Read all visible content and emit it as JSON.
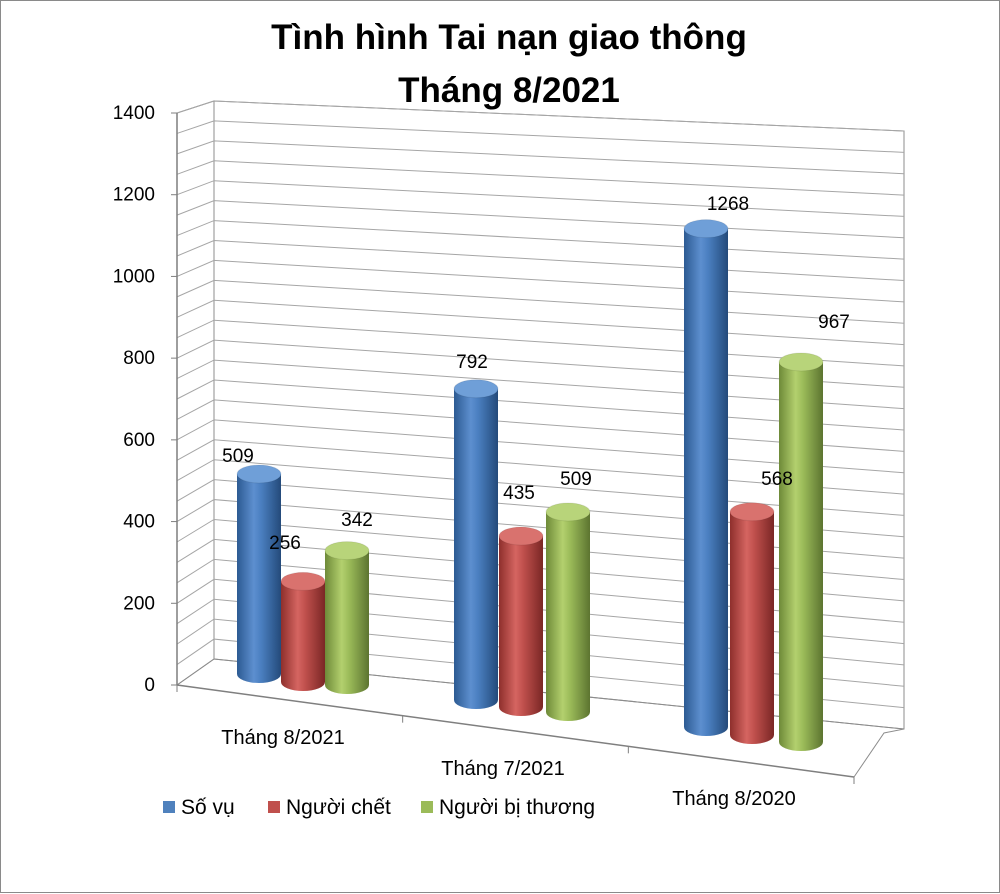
{
  "chart_data": {
    "type": "bar",
    "style": "3d-cylinder",
    "title_lines": [
      "Tình hình Tai nạn giao thông",
      "Tháng 8/2021"
    ],
    "categories": [
      "Tháng 8/2021",
      "Tháng 7/2021",
      "Tháng 8/2020"
    ],
    "series": [
      {
        "name": "Số vụ",
        "color": "#4F81BD",
        "values": [
          509,
          792,
          1268
        ]
      },
      {
        "name": "Người chết",
        "color": "#C0504D",
        "values": [
          256,
          435,
          568
        ]
      },
      {
        "name": "Người bị thương",
        "color": "#9BBB59",
        "values": [
          342,
          509,
          967
        ]
      }
    ],
    "y_ticks": [
      0,
      200,
      400,
      600,
      800,
      1000,
      1200,
      1400
    ],
    "ylim": [
      0,
      1400
    ],
    "grid": true,
    "legend_position": "bottom-left"
  }
}
